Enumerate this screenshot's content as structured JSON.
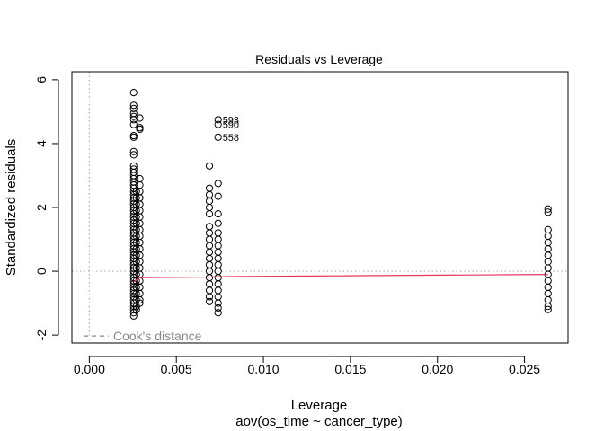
{
  "chart_data": {
    "type": "scatter",
    "title": "Residuals vs Leverage",
    "xlabel": "Leverage",
    "subtitle": "aov(os_time ~ cancer_type)",
    "ylabel": "Standardized residuals",
    "xlim": [
      -0.001,
      0.0275
    ],
    "ylim": [
      -2.25,
      6.25
    ],
    "x_ticks": [
      0.0,
      0.005,
      0.01,
      0.015,
      0.02,
      0.025
    ],
    "x_tick_labels": [
      "0.000",
      "0.005",
      "0.010",
      "0.015",
      "0.020",
      "0.025"
    ],
    "y_ticks": [
      -2,
      0,
      2,
      4,
      6
    ],
    "y_tick_labels": [
      "-2",
      "0",
      "2",
      "4",
      "6"
    ],
    "reference_lines": {
      "horizontal_y": 0,
      "vertical_x": 0,
      "style": "dotted"
    },
    "legend": {
      "label": "Cook's distance",
      "position": "bottom-left",
      "line_style": "dashed"
    },
    "series": [
      {
        "x": 0.00255,
        "values": [
          5.6,
          5.2,
          5.1,
          4.95,
          4.85,
          4.75,
          4.6,
          4.25,
          4.2,
          3.75,
          3.65,
          3.3,
          3.2,
          3.1,
          3.0,
          2.9,
          2.8,
          2.7,
          2.6,
          2.5,
          2.4,
          2.3,
          2.2,
          2.1,
          2.0,
          1.9,
          1.8,
          1.7,
          1.6,
          1.5,
          1.4,
          1.3,
          1.2,
          1.1,
          1.0,
          0.9,
          0.8,
          0.7,
          0.6,
          0.5,
          0.4,
          0.3,
          0.2,
          0.1,
          0.0,
          -0.1,
          -0.2,
          -0.3,
          -0.4,
          -0.5,
          -0.6,
          -0.7,
          -0.8,
          -0.9,
          -1.0,
          -1.1,
          -1.2,
          -1.3,
          -1.4
        ]
      },
      {
        "x": 0.0027,
        "values": [
          2.5,
          2.3,
          2.1,
          1.9,
          1.7,
          1.5,
          1.3,
          1.1,
          0.9,
          0.7,
          0.5,
          0.3,
          0.1,
          -0.1,
          -0.3,
          -0.5,
          -0.7,
          -0.9,
          -1.1,
          -1.2
        ]
      },
      {
        "x": 0.0029,
        "values": [
          4.8,
          4.5,
          4.45,
          2.9,
          2.7,
          2.5,
          2.3,
          2.1,
          1.9,
          1.7,
          1.5,
          1.3,
          1.1,
          0.9,
          0.7,
          0.5,
          0.3,
          0.1,
          -0.1,
          -0.3,
          -0.5,
          -0.7,
          -0.9,
          -1.0
        ]
      },
      {
        "x": 0.0069,
        "values": [
          3.3,
          2.6,
          2.4,
          2.2,
          2.0,
          1.8,
          1.4,
          1.2,
          1.0,
          0.8,
          0.6,
          0.4,
          0.2,
          0.0,
          -0.2,
          -0.4,
          -0.6,
          -0.8,
          -0.95
        ]
      },
      {
        "x": 0.0074,
        "values": [
          4.75,
          4.6,
          4.2,
          2.75,
          2.35,
          1.8,
          1.5,
          1.2,
          1.0,
          0.8,
          0.6,
          0.4,
          0.2,
          0.0,
          -0.2,
          -0.4,
          -0.6,
          -0.8,
          -1.0,
          -1.15,
          -1.3
        ]
      },
      {
        "x": 0.02635,
        "values": [
          1.95,
          1.85,
          1.3,
          1.1,
          0.9,
          0.7,
          0.5,
          0.3,
          0.1,
          -0.1,
          -0.3,
          -0.5,
          -0.7,
          -0.9,
          -1.1,
          -1.2
        ]
      }
    ],
    "point_labels": [
      {
        "x": 0.0074,
        "y": 4.75,
        "text": "593"
      },
      {
        "x": 0.0074,
        "y": 4.6,
        "text": "590"
      },
      {
        "x": 0.0074,
        "y": 4.2,
        "text": "558"
      }
    ],
    "smooth_line": {
      "color": "#E8365D",
      "x": [
        0.00255,
        0.0029,
        0.0069,
        0.0074,
        0.02635
      ],
      "y": [
        -0.33,
        -0.2,
        -0.18,
        -0.17,
        -0.1
      ]
    }
  }
}
